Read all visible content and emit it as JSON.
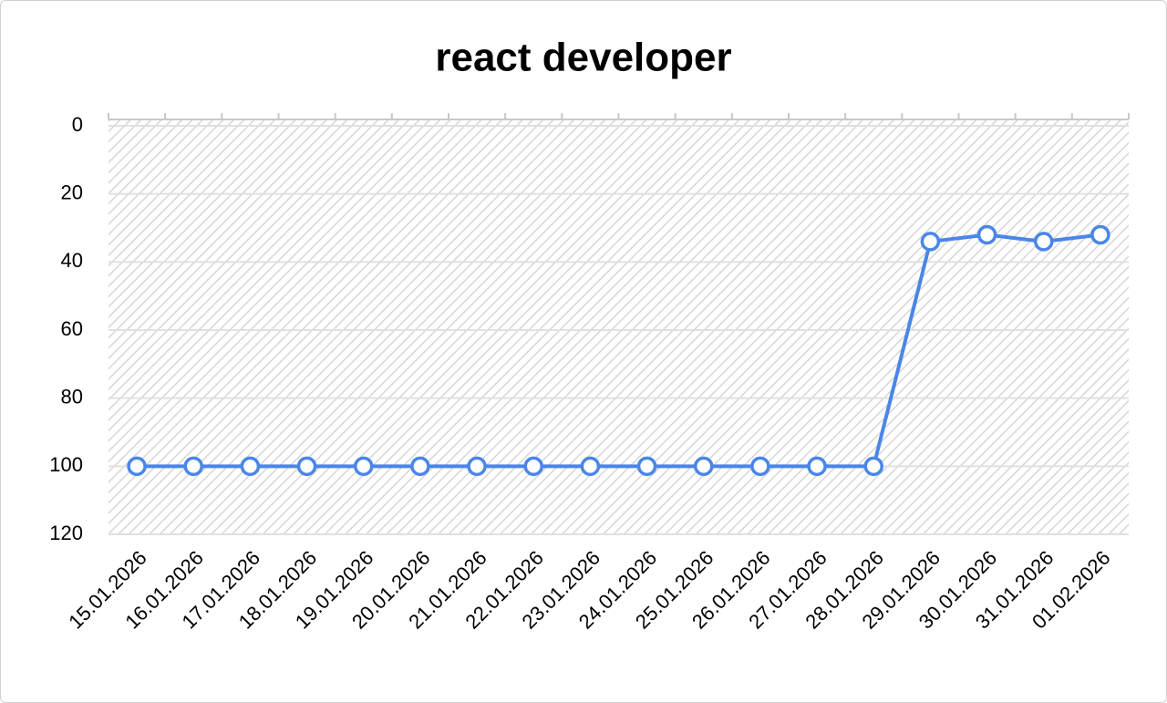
{
  "chart_data": {
    "type": "line",
    "title": "react developer",
    "categories": [
      "15.01.2026",
      "16.01.2026",
      "17.01.2026",
      "18.01.2026",
      "19.01.2026",
      "20.01.2026",
      "21.01.2026",
      "22.01.2026",
      "23.01.2026",
      "24.01.2026",
      "25.01.2026",
      "26.01.2026",
      "27.01.2026",
      "28.01.2026",
      "29.01.2026",
      "30.01.2026",
      "31.01.2026",
      "01.02.2026"
    ],
    "series": [
      {
        "color": "#4a86e8",
        "values": [
          100,
          100,
          100,
          100,
          100,
          100,
          100,
          100,
          100,
          100,
          100,
          100,
          100,
          100,
          34,
          32,
          34,
          32
        ]
      }
    ],
    "ylim": [
      0,
      120
    ],
    "yticks": [
      0,
      20,
      40,
      60,
      80,
      100,
      120
    ],
    "y_inverted": true,
    "grid": true
  }
}
